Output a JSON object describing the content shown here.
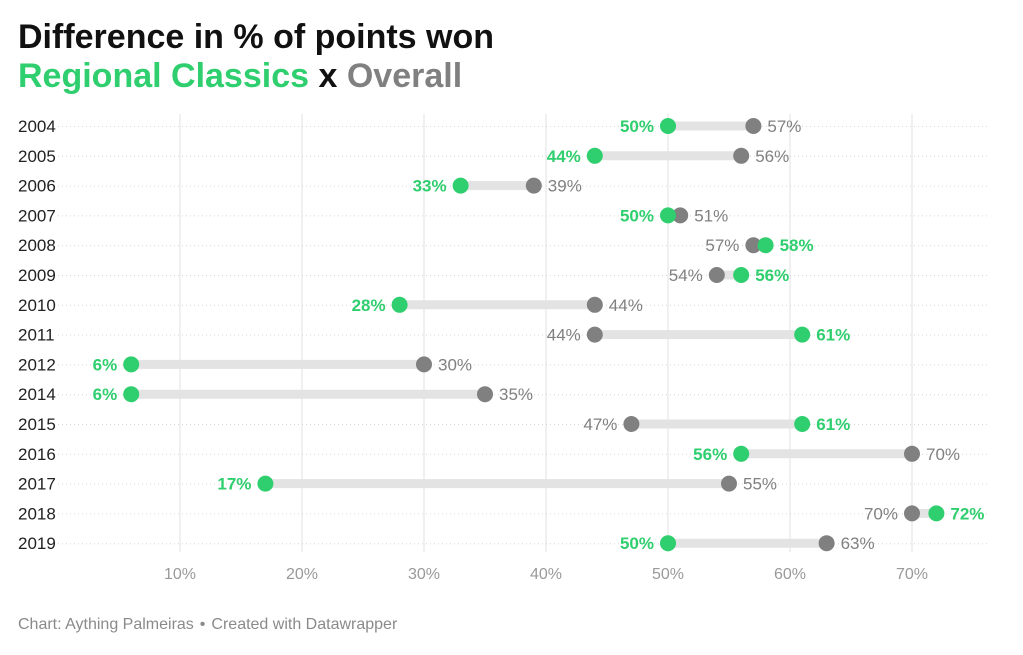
{
  "header": {
    "title": "Difference in % of points won",
    "subtitle_series1": "Regional Classics",
    "subtitle_sep": "x",
    "subtitle_series2": "Overall"
  },
  "footer": {
    "source": "Chart: Aything Palmeiras",
    "sep": "•",
    "credit": "Created with Datawrapper"
  },
  "colors": {
    "regional": "#2fce6e",
    "overall": "#808080",
    "connector": "#e3e3e3",
    "grid": "#e0e0e0"
  },
  "chart_data": {
    "type": "dot-range",
    "title": "Difference in % of points won",
    "categories": [
      "2004",
      "2005",
      "2006",
      "2007",
      "2008",
      "2009",
      "2010",
      "2011",
      "2012",
      "2014",
      "2015",
      "2016",
      "2017",
      "2018",
      "2019"
    ],
    "series": [
      {
        "name": "Regional Classics",
        "values": [
          50,
          44,
          33,
          50,
          58,
          56,
          28,
          61,
          6,
          6,
          61,
          56,
          17,
          72,
          50
        ]
      },
      {
        "name": "Overall",
        "values": [
          57,
          56,
          39,
          51,
          57,
          54,
          44,
          44,
          30,
          35,
          47,
          70,
          55,
          70,
          63
        ]
      }
    ],
    "xticks": [
      "10%",
      "20%",
      "30%",
      "40%",
      "50%",
      "60%",
      "70%"
    ],
    "xtick_values": [
      10,
      20,
      30,
      40,
      50,
      60,
      70
    ],
    "xlim": [
      0,
      72
    ],
    "value_suffix": "%"
  }
}
